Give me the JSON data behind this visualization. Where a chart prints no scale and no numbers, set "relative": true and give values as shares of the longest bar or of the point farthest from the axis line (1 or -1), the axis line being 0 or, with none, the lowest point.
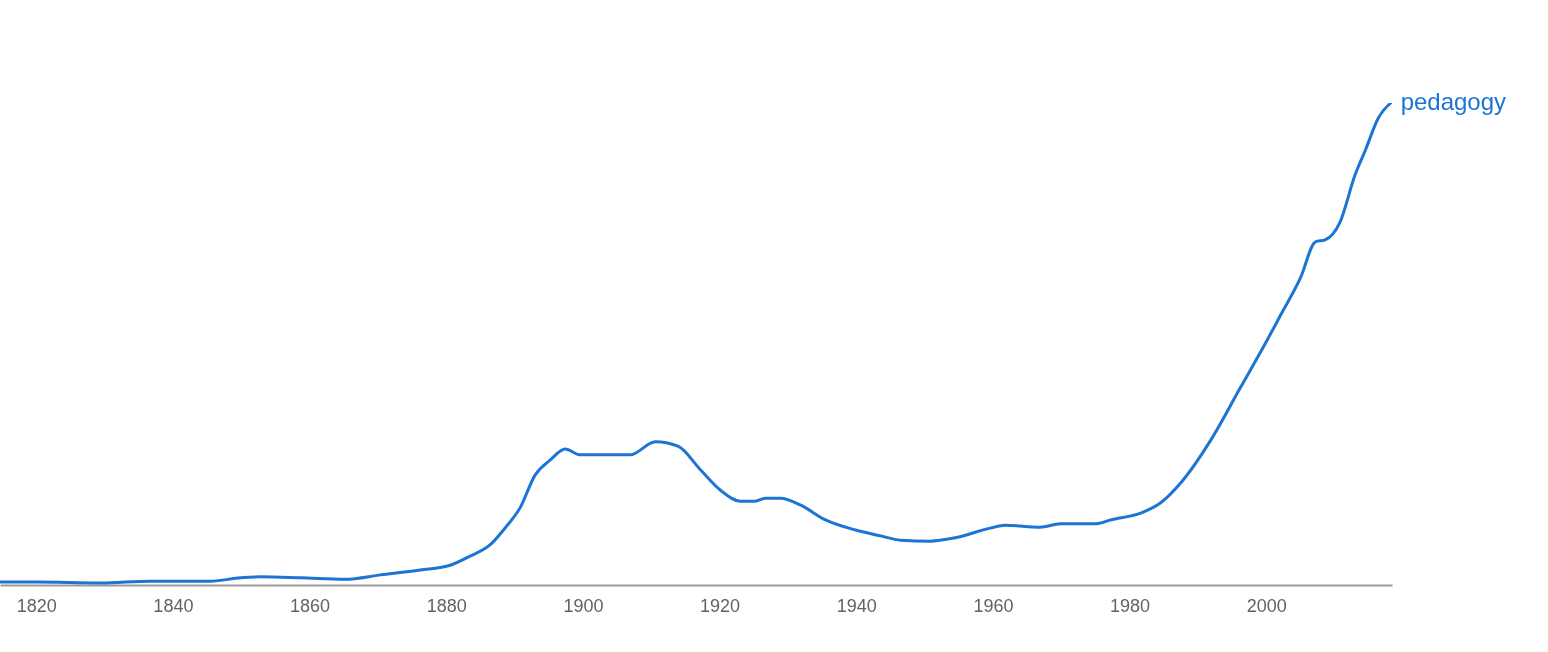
{
  "chart_data": {
    "type": "line",
    "relative": true,
    "xlim": [
      1814.7,
      2018.4
    ],
    "xticks": [
      1820,
      1840,
      1860,
      1880,
      1900,
      1920,
      1940,
      1960,
      1980,
      2000
    ],
    "series": [
      {
        "name": "pedagogy",
        "color": "#1c74d4",
        "x": [
          1814.7,
          1820,
          1829.4,
          1836.7,
          1845.5,
          1849.9,
          1852.8,
          1858.7,
          1865.2,
          1870.4,
          1876.2,
          1880.6,
          1883.5,
          1886.4,
          1888.6,
          1890.8,
          1893.0,
          1895.2,
          1897.4,
          1899.6,
          1902.5,
          1906.9,
          1910.6,
          1913.9,
          1917.2,
          1920.1,
          1923.0,
          1925.2,
          1926.7,
          1928.9,
          1931.8,
          1935.5,
          1939.9,
          1943.5,
          1946.5,
          1950.8,
          1954.5,
          1959.6,
          1961.8,
          1966.9,
          1969.9,
          1975.0,
          1977.2,
          1981.6,
          1984.5,
          1987.5,
          1991.9,
          1996.2,
          1999.9,
          2002.1,
          2005.0,
          2007.2,
          2008.6,
          2010.8,
          2013.0,
          2014.5,
          2016.4,
          2018.2
        ],
        "values": [
          0.006,
          0.006,
          0.004,
          0.008,
          0.008,
          0.015,
          0.017,
          0.015,
          0.012,
          0.021,
          0.031,
          0.041,
          0.06,
          0.083,
          0.118,
          0.16,
          0.228,
          0.259,
          0.282,
          0.27,
          0.27,
          0.27,
          0.297,
          0.288,
          0.239,
          0.197,
          0.174,
          0.174,
          0.18,
          0.18,
          0.166,
          0.135,
          0.114,
          0.102,
          0.093,
          0.091,
          0.098,
          0.118,
          0.124,
          0.12,
          0.127,
          0.127,
          0.135,
          0.149,
          0.17,
          0.212,
          0.301,
          0.409,
          0.502,
          0.56,
          0.637,
          0.712,
          0.716,
          0.753,
          0.851,
          0.902,
          0.969,
          1
        ]
      }
    ],
    "legend": false
  }
}
